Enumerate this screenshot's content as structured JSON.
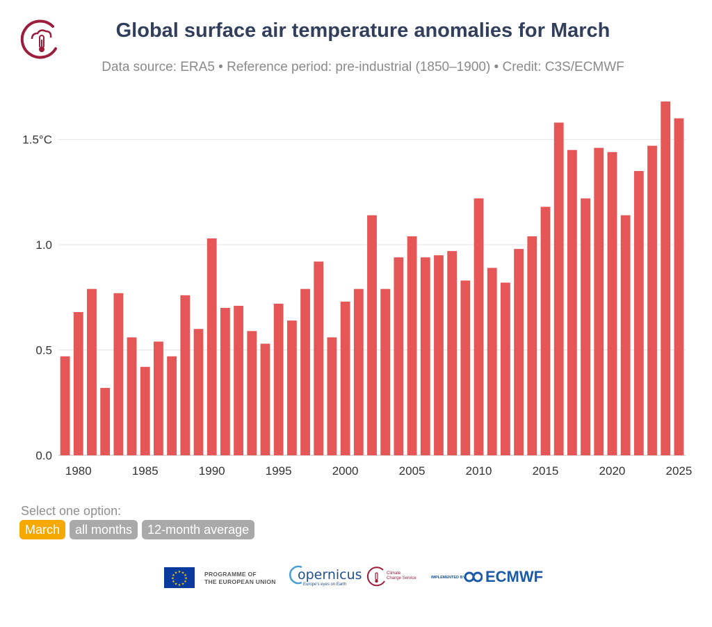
{
  "title": "Global surface air temperature anomalies for March",
  "subtitle": "Data source: ERA5 • Reference period: pre-industrial (1850–1900) • Credit: C3S/ECMWF",
  "colors": {
    "bar": "#e45756",
    "active_option": "#f5a800",
    "inactive_option": "#a9a9a9",
    "title": "#323f5c"
  },
  "chart_data": {
    "type": "bar",
    "title": "Global surface air temperature anomalies for March",
    "xlabel": "",
    "ylabel": "",
    "x": [
      1979,
      1980,
      1981,
      1982,
      1983,
      1984,
      1985,
      1986,
      1987,
      1988,
      1989,
      1990,
      1991,
      1992,
      1993,
      1994,
      1995,
      1996,
      1997,
      1998,
      1999,
      2000,
      2001,
      2002,
      2003,
      2004,
      2005,
      2006,
      2007,
      2008,
      2009,
      2010,
      2011,
      2012,
      2013,
      2014,
      2015,
      2016,
      2017,
      2018,
      2019,
      2020,
      2021,
      2022,
      2023,
      2024,
      2025
    ],
    "values": [
      0.47,
      0.68,
      0.79,
      0.32,
      0.77,
      0.56,
      0.42,
      0.54,
      0.47,
      0.76,
      0.6,
      1.03,
      0.7,
      0.71,
      0.59,
      0.53,
      0.72,
      0.64,
      0.79,
      0.92,
      0.56,
      0.73,
      0.79,
      1.14,
      0.79,
      0.94,
      1.04,
      0.94,
      0.95,
      0.97,
      0.83,
      1.22,
      0.89,
      0.82,
      0.98,
      1.04,
      1.18,
      1.58,
      1.45,
      1.22,
      1.46,
      1.44,
      1.14,
      1.35,
      1.47,
      1.68,
      1.6
    ],
    "xticks": [
      "1980",
      "1985",
      "1990",
      "1995",
      "2000",
      "2005",
      "2010",
      "2015",
      "2020",
      "2025"
    ],
    "yticks": [
      "0.0",
      "0.5",
      "1.0",
      "1.5°C"
    ],
    "ylim": [
      0,
      1.7
    ],
    "grid": true,
    "legend": "none"
  },
  "controls": {
    "label": "Select one option:",
    "options": [
      "March",
      "all months",
      "12-month average"
    ]
  },
  "footer": {
    "eu_line1": "PROGRAMME OF",
    "eu_line2": "THE EUROPEAN UNION",
    "copernicus": "opernicus",
    "copernicus_tag": "Europe's eyes on Earth",
    "c3s_line1": "Climate",
    "c3s_line2": "Change Service",
    "implemented_by": "IMPLEMENTED BY",
    "ecmwf": "ECMWF"
  }
}
